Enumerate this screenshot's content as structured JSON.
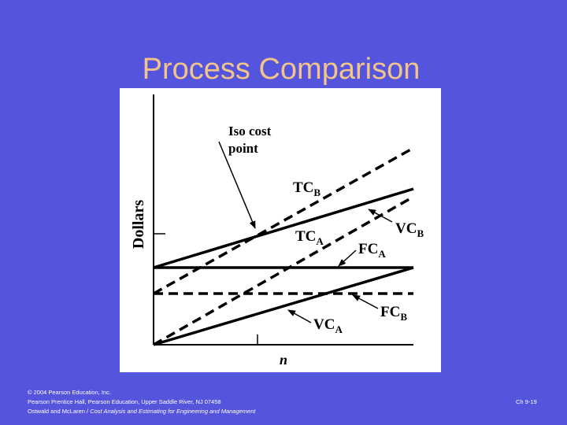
{
  "title": "Process Comparison",
  "figure": {
    "y_axis_label": "Dollars",
    "x_axis_label": "n",
    "iso_cost_label": [
      "Iso cost",
      "point"
    ],
    "lines": [
      {
        "main": "TC",
        "sub": "B"
      },
      {
        "main": "TC",
        "sub": "A"
      },
      {
        "main": "VC",
        "sub": "B"
      },
      {
        "main": "FC",
        "sub": "A"
      },
      {
        "main": "FC",
        "sub": "B"
      },
      {
        "main": "VC",
        "sub": "A"
      }
    ]
  },
  "footer": {
    "lines": [
      "© 2004 Pearson Education, Inc.",
      "Pearson Prentice Hall, Pearson Education, Upper Saddle River, NJ 07458"
    ],
    "credit": "Ostwald and McLaren / ",
    "book": "Cost Analysis and Estimating for Engineering and Management",
    "slide": "Ch 9-19"
  }
}
